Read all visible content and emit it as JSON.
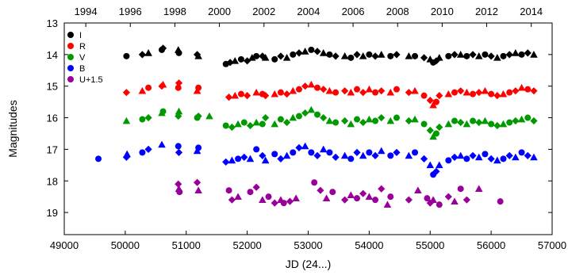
{
  "chart_data": {
    "type": "scatter",
    "title": "",
    "xlabel": "JD (24...)",
    "ylabel": "Magnitudes",
    "xlim": [
      49000,
      57000
    ],
    "ylim": [
      19.7,
      13.0
    ],
    "y_inverted": true,
    "grid": false,
    "legend_position": "top-left",
    "x_ticks": [
      49000,
      50000,
      51000,
      52000,
      53000,
      54000,
      55000,
      56000,
      57000
    ],
    "x_tick_labels": [
      "49000",
      "50000",
      "51000",
      "52000",
      "53000",
      "54000",
      "55000",
      "56000",
      "57000"
    ],
    "y_ticks": [
      13,
      14,
      15,
      16,
      17,
      18,
      19
    ],
    "y_tick_labels": [
      "13",
      "14",
      "15",
      "16",
      "17",
      "18",
      "19"
    ],
    "top_axis": {
      "unit": "year",
      "year_to_jd": [
        {
          "year": 1994,
          "jd": 49353
        },
        {
          "year": 1996,
          "jd": 50083
        },
        {
          "year": 1998,
          "jd": 50814
        },
        {
          "year": 2000,
          "jd": 51544
        },
        {
          "year": 2002,
          "jd": 52275
        },
        {
          "year": 2004,
          "jd": 53005
        },
        {
          "year": 2006,
          "jd": 53736
        },
        {
          "year": 2008,
          "jd": 54466
        },
        {
          "year": 2010,
          "jd": 55197
        },
        {
          "year": 2012,
          "jd": 55927
        },
        {
          "year": 2014,
          "jd": 56658
        }
      ],
      "tick_labels": [
        "1994",
        "1996",
        "1998",
        "2000",
        "2002",
        "2004",
        "2006",
        "2008",
        "2010",
        "2012",
        "2014"
      ]
    },
    "series": [
      {
        "name": "I",
        "color": "#000000",
        "points": [
          [
            50020,
            14.05
          ],
          [
            50280,
            14.0
          ],
          [
            50380,
            13.95
          ],
          [
            50600,
            13.85
          ],
          [
            50620,
            13.8
          ],
          [
            50870,
            13.85
          ],
          [
            50880,
            13.95
          ],
          [
            51180,
            14.0
          ],
          [
            51200,
            14.05
          ],
          [
            51650,
            14.3
          ],
          [
            51720,
            14.25
          ],
          [
            51800,
            14.2
          ],
          [
            51900,
            14.15
          ],
          [
            52000,
            14.2
          ],
          [
            52080,
            14.1
          ],
          [
            52150,
            14.05
          ],
          [
            52250,
            14.05
          ],
          [
            52300,
            14.1
          ],
          [
            52450,
            14.15
          ],
          [
            52550,
            14.05
          ],
          [
            52650,
            14.1
          ],
          [
            52750,
            14.0
          ],
          [
            52850,
            13.95
          ],
          [
            52950,
            13.9
          ],
          [
            53050,
            13.85
          ],
          [
            53150,
            13.9
          ],
          [
            53250,
            13.95
          ],
          [
            53350,
            14.0
          ],
          [
            53450,
            14.05
          ],
          [
            53600,
            14.05
          ],
          [
            53700,
            14.1
          ],
          [
            53800,
            14.0
          ],
          [
            53900,
            14.05
          ],
          [
            54000,
            14.0
          ],
          [
            54100,
            14.05
          ],
          [
            54200,
            14.0
          ],
          [
            54350,
            14.05
          ],
          [
            54450,
            14.0
          ],
          [
            54650,
            14.05
          ],
          [
            54750,
            14.05
          ],
          [
            54900,
            14.1
          ],
          [
            55000,
            14.15
          ],
          [
            55050,
            14.25
          ],
          [
            55100,
            14.2
          ],
          [
            55150,
            14.1
          ],
          [
            55300,
            14.05
          ],
          [
            55400,
            14.0
          ],
          [
            55500,
            14.0
          ],
          [
            55600,
            14.05
          ],
          [
            55700,
            14.0
          ],
          [
            55800,
            14.05
          ],
          [
            55900,
            14.0
          ],
          [
            56000,
            14.05
          ],
          [
            56100,
            14.1
          ],
          [
            56200,
            14.05
          ],
          [
            56300,
            14.0
          ],
          [
            56400,
            13.95
          ],
          [
            56500,
            14.0
          ],
          [
            56600,
            13.95
          ],
          [
            56700,
            14.0
          ]
        ]
      },
      {
        "name": "R",
        "color": "#ff0000",
        "points": [
          [
            50020,
            15.2
          ],
          [
            50280,
            15.15
          ],
          [
            50380,
            15.05
          ],
          [
            50600,
            15.0
          ],
          [
            50620,
            14.95
          ],
          [
            50870,
            15.05
          ],
          [
            50880,
            14.9
          ],
          [
            51180,
            15.15
          ],
          [
            51200,
            15.05
          ],
          [
            51700,
            15.35
          ],
          [
            51800,
            15.3
          ],
          [
            51900,
            15.25
          ],
          [
            52000,
            15.3
          ],
          [
            52150,
            15.2
          ],
          [
            52250,
            15.25
          ],
          [
            52300,
            15.3
          ],
          [
            52450,
            15.25
          ],
          [
            52550,
            15.2
          ],
          [
            52650,
            15.25
          ],
          [
            52750,
            15.15
          ],
          [
            52850,
            15.1
          ],
          [
            52950,
            15.0
          ],
          [
            53050,
            14.95
          ],
          [
            53150,
            15.05
          ],
          [
            53250,
            15.1
          ],
          [
            53350,
            15.15
          ],
          [
            53450,
            15.2
          ],
          [
            53600,
            15.15
          ],
          [
            53700,
            15.2
          ],
          [
            53800,
            15.1
          ],
          [
            53900,
            15.2
          ],
          [
            54000,
            15.1
          ],
          [
            54100,
            15.2
          ],
          [
            54200,
            15.15
          ],
          [
            54350,
            15.2
          ],
          [
            54450,
            15.1
          ],
          [
            54650,
            15.2
          ],
          [
            54750,
            15.15
          ],
          [
            54900,
            15.3
          ],
          [
            55000,
            15.45
          ],
          [
            55050,
            15.6
          ],
          [
            55100,
            15.5
          ],
          [
            55150,
            15.3
          ],
          [
            55300,
            15.25
          ],
          [
            55400,
            15.2
          ],
          [
            55500,
            15.15
          ],
          [
            55600,
            15.2
          ],
          [
            55700,
            15.25
          ],
          [
            55800,
            15.2
          ],
          [
            55900,
            15.15
          ],
          [
            56000,
            15.25
          ],
          [
            56100,
            15.3
          ],
          [
            56200,
            15.25
          ],
          [
            56300,
            15.2
          ],
          [
            56400,
            15.15
          ],
          [
            56500,
            15.05
          ],
          [
            56600,
            15.1
          ],
          [
            56700,
            15.15
          ]
        ]
      },
      {
        "name": "V",
        "color": "#009900",
        "points": [
          [
            50020,
            16.1
          ],
          [
            50280,
            16.05
          ],
          [
            50380,
            16.0
          ],
          [
            50600,
            15.85
          ],
          [
            50620,
            15.8
          ],
          [
            50870,
            15.95
          ],
          [
            50880,
            15.8
          ],
          [
            51180,
            16.0
          ],
          [
            51200,
            15.95
          ],
          [
            51380,
            15.95
          ],
          [
            51650,
            16.25
          ],
          [
            51750,
            16.3
          ],
          [
            51850,
            16.2
          ],
          [
            51950,
            16.15
          ],
          [
            52050,
            16.25
          ],
          [
            52150,
            16.15
          ],
          [
            52250,
            16.2
          ],
          [
            52300,
            16.0
          ],
          [
            52450,
            16.2
          ],
          [
            52550,
            16.05
          ],
          [
            52650,
            16.15
          ],
          [
            52750,
            16.0
          ],
          [
            52850,
            15.95
          ],
          [
            52950,
            15.85
          ],
          [
            53050,
            15.75
          ],
          [
            53150,
            15.9
          ],
          [
            53250,
            16.0
          ],
          [
            53350,
            16.1
          ],
          [
            53450,
            16.15
          ],
          [
            53600,
            16.1
          ],
          [
            53700,
            16.2
          ],
          [
            53800,
            16.05
          ],
          [
            53900,
            16.15
          ],
          [
            54000,
            16.05
          ],
          [
            54100,
            16.1
          ],
          [
            54200,
            16.0
          ],
          [
            54350,
            16.1
          ],
          [
            54450,
            16.0
          ],
          [
            54650,
            16.1
          ],
          [
            54750,
            16.05
          ],
          [
            54900,
            16.2
          ],
          [
            55000,
            16.4
          ],
          [
            55050,
            16.6
          ],
          [
            55100,
            16.5
          ],
          [
            55150,
            16.3
          ],
          [
            55300,
            16.2
          ],
          [
            55400,
            16.1
          ],
          [
            55500,
            16.15
          ],
          [
            55600,
            16.2
          ],
          [
            55700,
            16.1
          ],
          [
            55800,
            16.15
          ],
          [
            55900,
            16.1
          ],
          [
            56000,
            16.2
          ],
          [
            56100,
            16.25
          ],
          [
            56200,
            16.2
          ],
          [
            56300,
            16.15
          ],
          [
            56400,
            16.1
          ],
          [
            56500,
            16.05
          ],
          [
            56600,
            16.0
          ],
          [
            56700,
            16.1
          ]
        ]
      },
      {
        "name": "B",
        "color": "#0000ff",
        "points": [
          [
            49560,
            17.3
          ],
          [
            50020,
            17.25
          ],
          [
            50030,
            17.15
          ],
          [
            50280,
            17.1
          ],
          [
            50380,
            17.0
          ],
          [
            50600,
            16.85
          ],
          [
            50870,
            16.9
          ],
          [
            50880,
            17.1
          ],
          [
            51180,
            17.05
          ],
          [
            51200,
            16.95
          ],
          [
            51650,
            17.4
          ],
          [
            51750,
            17.35
          ],
          [
            51850,
            17.3
          ],
          [
            51950,
            17.25
          ],
          [
            52050,
            17.3
          ],
          [
            52150,
            17.0
          ],
          [
            52250,
            17.2
          ],
          [
            52300,
            17.35
          ],
          [
            52450,
            17.15
          ],
          [
            52550,
            17.3
          ],
          [
            52650,
            17.2
          ],
          [
            52750,
            17.1
          ],
          [
            52850,
            16.95
          ],
          [
            52950,
            16.9
          ],
          [
            53050,
            17.1
          ],
          [
            53150,
            17.2
          ],
          [
            53250,
            17.0
          ],
          [
            53350,
            17.1
          ],
          [
            53450,
            17.25
          ],
          [
            53600,
            17.2
          ],
          [
            53700,
            17.3
          ],
          [
            53800,
            17.1
          ],
          [
            53900,
            17.2
          ],
          [
            54000,
            17.1
          ],
          [
            54100,
            17.2
          ],
          [
            54200,
            17.05
          ],
          [
            54350,
            17.2
          ],
          [
            54450,
            17.1
          ],
          [
            54650,
            17.2
          ],
          [
            54750,
            17.1
          ],
          [
            54900,
            17.3
          ],
          [
            55000,
            17.5
          ],
          [
            55050,
            17.8
          ],
          [
            55100,
            17.7
          ],
          [
            55150,
            17.5
          ],
          [
            55300,
            17.35
          ],
          [
            55400,
            17.25
          ],
          [
            55500,
            17.2
          ],
          [
            55600,
            17.3
          ],
          [
            55700,
            17.2
          ],
          [
            55800,
            17.25
          ],
          [
            55900,
            17.15
          ],
          [
            56000,
            17.3
          ],
          [
            56100,
            17.35
          ],
          [
            56200,
            17.3
          ],
          [
            56300,
            17.2
          ],
          [
            56400,
            17.25
          ],
          [
            56500,
            17.1
          ],
          [
            56600,
            17.2
          ],
          [
            56700,
            17.25
          ]
        ]
      },
      {
        "name": "U+1.5",
        "color": "#990099",
        "points": [
          [
            50870,
            18.1
          ],
          [
            50880,
            18.25
          ],
          [
            50890,
            18.35
          ],
          [
            51180,
            18.05
          ],
          [
            51200,
            18.3
          ],
          [
            51700,
            18.3
          ],
          [
            51750,
            18.6
          ],
          [
            51850,
            18.5
          ],
          [
            52050,
            18.35
          ],
          [
            52150,
            18.2
          ],
          [
            52250,
            18.6
          ],
          [
            52350,
            18.5
          ],
          [
            52450,
            18.7
          ],
          [
            52550,
            18.6
          ],
          [
            52600,
            18.7
          ],
          [
            52700,
            18.65
          ],
          [
            52800,
            18.55
          ],
          [
            53100,
            18.05
          ],
          [
            53200,
            18.3
          ],
          [
            53300,
            18.55
          ],
          [
            53400,
            18.35
          ],
          [
            53600,
            18.6
          ],
          [
            53700,
            18.45
          ],
          [
            53800,
            18.55
          ],
          [
            53900,
            18.4
          ],
          [
            54000,
            18.5
          ],
          [
            54100,
            18.6
          ],
          [
            54200,
            18.25
          ],
          [
            54300,
            18.75
          ],
          [
            54350,
            18.5
          ],
          [
            54650,
            18.6
          ],
          [
            54800,
            18.3
          ],
          [
            54950,
            18.55
          ],
          [
            55000,
            18.7
          ],
          [
            55050,
            18.6
          ],
          [
            55150,
            18.75
          ],
          [
            55300,
            18.5
          ],
          [
            55400,
            18.65
          ],
          [
            55500,
            18.25
          ],
          [
            55600,
            18.6
          ],
          [
            55800,
            18.25
          ],
          [
            56150,
            18.65
          ]
        ]
      }
    ]
  }
}
